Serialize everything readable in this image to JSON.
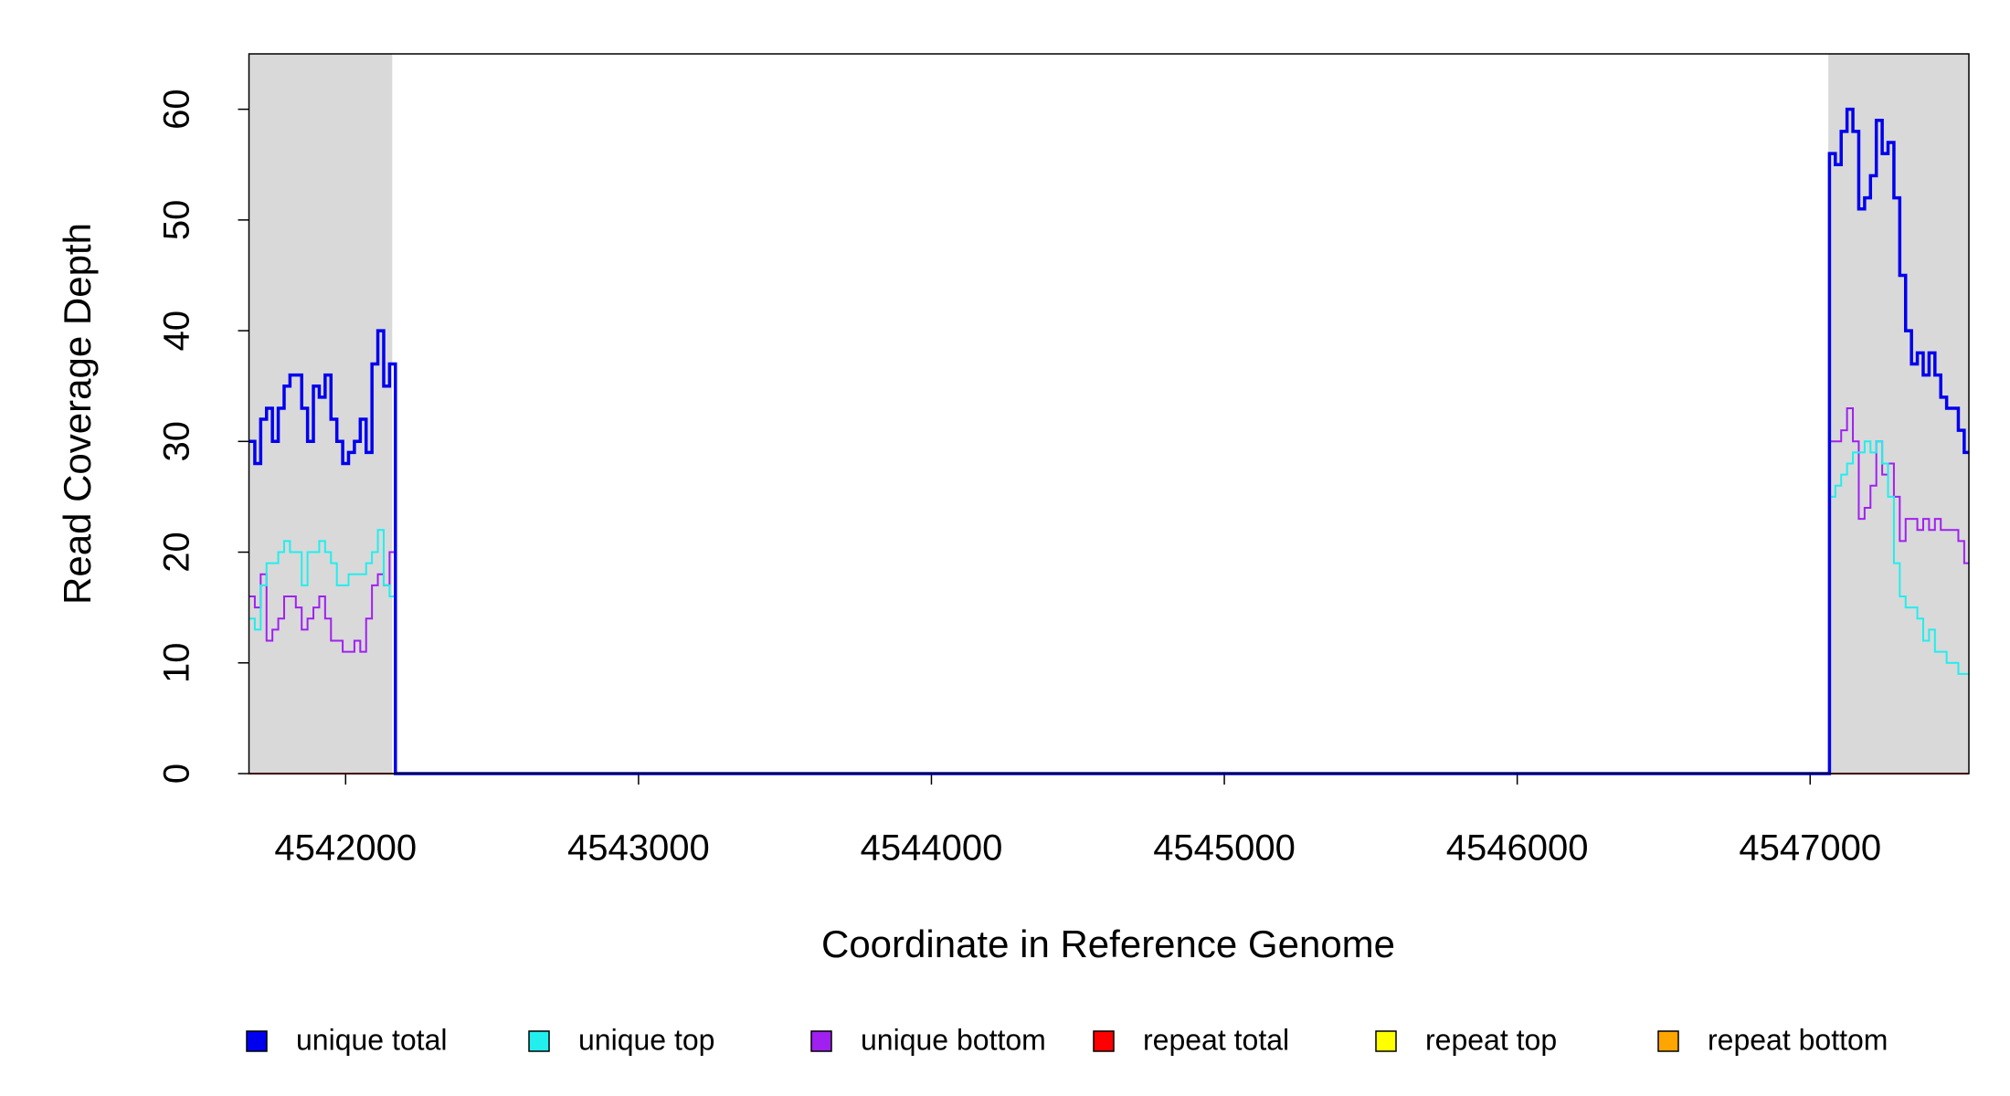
{
  "chart_data": {
    "type": "line",
    "step": true,
    "xlabel": "Coordinate in Reference Genome",
    "ylabel": "Read Coverage Depth",
    "xlim": [
      4541670,
      4547542
    ],
    "ylim": [
      0,
      65
    ],
    "xticks": [
      4542000,
      4543000,
      4544000,
      4545000,
      4546000,
      4547000
    ],
    "yticks": [
      0,
      10,
      20,
      30,
      40,
      50,
      60
    ],
    "highlight_regions": [
      [
        4541670,
        4542159
      ],
      [
        4547062,
        4547542
      ]
    ],
    "highlight_color": "#d9d9d9",
    "legend": "bottom",
    "x": [
      4541670,
      4541690,
      4541710,
      4541730,
      4541750,
      4541770,
      4541790,
      4541810,
      4541830,
      4541850,
      4541870,
      4541890,
      4541910,
      4541930,
      4541950,
      4541970,
      4541990,
      4542010,
      4542030,
      4542050,
      4542070,
      4542090,
      4542110,
      4542130,
      4542150,
      4542170,
      4547058,
      4547066,
      4547086,
      4547106,
      4547126,
      4547146,
      4547166,
      4547186,
      4547206,
      4547226,
      4547246,
      4547266,
      4547286,
      4547306,
      4547326,
      4547346,
      4547366,
      4547386,
      4547406,
      4547426,
      4547446,
      4547466,
      4547486,
      4547506,
      4547526
    ],
    "series": [
      {
        "name": "unique total",
        "color": "#0000ee",
        "values": [
          30,
          28,
          32,
          33,
          30,
          33,
          35,
          36,
          36,
          33,
          30,
          35,
          34,
          36,
          32,
          30,
          28,
          29,
          30,
          32,
          29,
          37,
          40,
          35,
          37,
          0,
          0,
          56,
          55,
          58,
          60,
          58,
          51,
          52,
          54,
          59,
          56,
          57,
          52,
          45,
          40,
          37,
          38,
          36,
          38,
          36,
          34,
          33,
          33,
          31,
          29
        ]
      },
      {
        "name": "unique top",
        "color": "#22eeee",
        "values": [
          14,
          13,
          17,
          19,
          19,
          20,
          21,
          20,
          20,
          17,
          20,
          20,
          21,
          20,
          19,
          17,
          17,
          18,
          18,
          18,
          19,
          20,
          22,
          17,
          16,
          0,
          0,
          25,
          26,
          27,
          28,
          29,
          29,
          30,
          29,
          30,
          28,
          25,
          19,
          16,
          15,
          15,
          14,
          12,
          13,
          11,
          11,
          10,
          10,
          9,
          9
        ]
      },
      {
        "name": "unique bottom",
        "color": "#a020f0",
        "values": [
          16,
          15,
          18,
          12,
          13,
          14,
          16,
          16,
          15,
          13,
          14,
          15,
          16,
          14,
          12,
          12,
          11,
          11,
          12,
          11,
          14,
          17,
          18,
          17,
          20,
          0,
          0,
          30,
          30,
          31,
          33,
          30,
          23,
          24,
          26,
          30,
          27,
          28,
          25,
          21,
          23,
          23,
          22,
          23,
          22,
          23,
          22,
          22,
          22,
          21,
          19
        ]
      },
      {
        "name": "repeat total",
        "color": "#ff0000",
        "values": [
          0,
          0,
          0,
          0,
          0,
          0,
          0,
          0,
          0,
          0,
          0,
          0,
          0,
          0,
          0,
          0,
          0,
          0,
          0,
          0,
          0,
          0,
          0,
          0,
          0,
          0,
          0,
          0,
          0,
          0,
          0,
          0,
          0,
          0,
          0,
          0,
          0,
          0,
          0,
          0,
          0,
          0,
          0,
          0,
          0,
          0,
          0,
          0,
          0,
          0,
          0
        ]
      },
      {
        "name": "repeat top",
        "color": "#ffff00",
        "values": [
          0,
          0,
          0,
          0,
          0,
          0,
          0,
          0,
          0,
          0,
          0,
          0,
          0,
          0,
          0,
          0,
          0,
          0,
          0,
          0,
          0,
          0,
          0,
          0,
          0,
          0,
          0,
          0,
          0,
          0,
          0,
          0,
          0,
          0,
          0,
          0,
          0,
          0,
          0,
          0,
          0,
          0,
          0,
          0,
          0,
          0,
          0,
          0,
          0,
          0,
          0
        ]
      },
      {
        "name": "repeat bottom",
        "color": "#ffa500",
        "values": [
          0,
          0,
          0,
          0,
          0,
          0,
          0,
          0,
          0,
          0,
          0,
          0,
          0,
          0,
          0,
          0,
          0,
          0,
          0,
          0,
          0,
          0,
          0,
          0,
          0,
          0,
          0,
          0,
          0,
          0,
          0,
          0,
          0,
          0,
          0,
          0,
          0,
          0,
          0,
          0,
          0,
          0,
          0,
          0,
          0,
          0,
          0,
          0,
          0,
          0,
          0
        ]
      }
    ]
  }
}
